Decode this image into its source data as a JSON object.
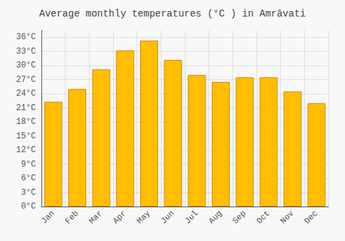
{
  "chart_data": {
    "type": "bar",
    "title": "Average monthly temperatures (°C ) in Amrāvati",
    "categories": [
      "Jan",
      "Feb",
      "Mar",
      "Apr",
      "May",
      "Jun",
      "Jul",
      "Aug",
      "Sep",
      "Oct",
      "Nov",
      "Dec"
    ],
    "values": [
      22.3,
      25.0,
      29.2,
      33.2,
      35.3,
      31.2,
      28.0,
      26.5,
      27.5,
      27.5,
      24.5,
      22.0
    ],
    "color": "#FFBE00",
    "ylim": [
      0,
      37.5
    ],
    "yticks": [
      {
        "value": 0,
        "label": "0°C"
      },
      {
        "value": 3,
        "label": "3°C"
      },
      {
        "value": 6,
        "label": "6°C"
      },
      {
        "value": 9,
        "label": "9°C"
      },
      {
        "value": 12,
        "label": "12°C"
      },
      {
        "value": 15,
        "label": "15°C"
      },
      {
        "value": 18,
        "label": "18°C"
      },
      {
        "value": 21,
        "label": "21°C"
      },
      {
        "value": 24,
        "label": "24°C"
      },
      {
        "value": 27,
        "label": "27°C"
      },
      {
        "value": 30,
        "label": "30°C"
      },
      {
        "value": 33,
        "label": "33°C"
      },
      {
        "value": 36,
        "label": "36°C"
      }
    ],
    "grid": true
  }
}
